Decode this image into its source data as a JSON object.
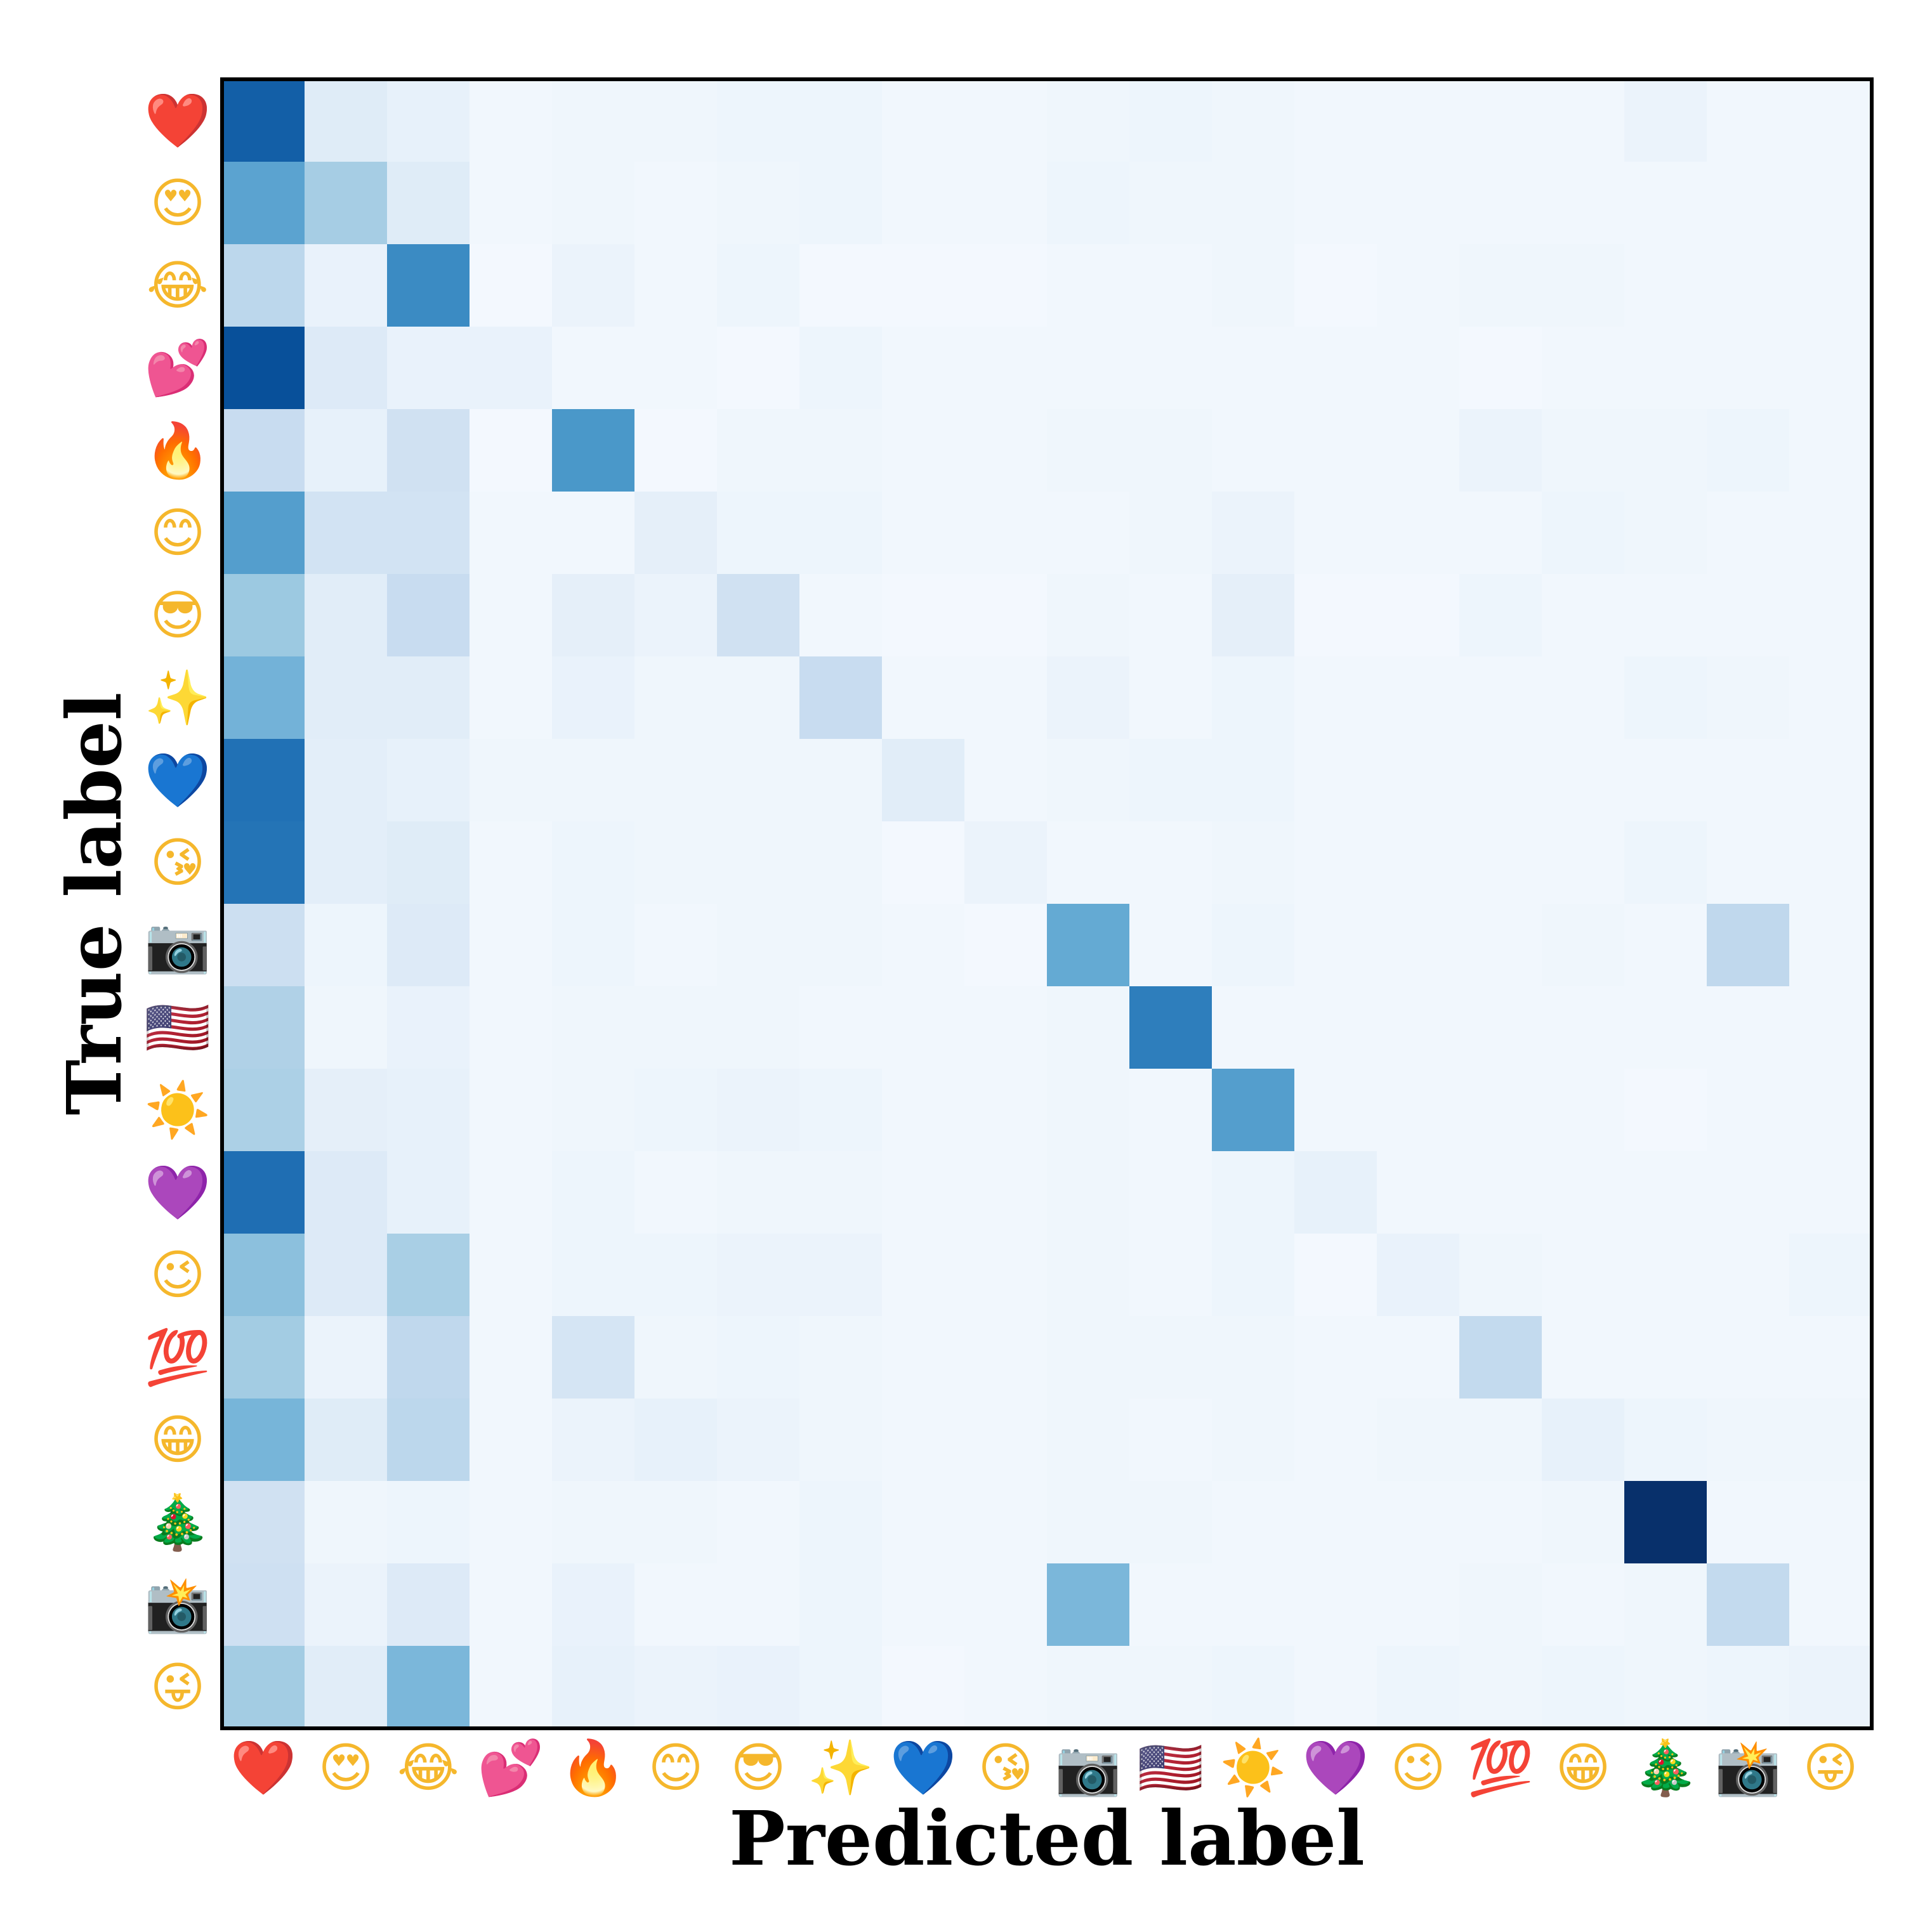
{
  "chart_data": {
    "type": "heatmap",
    "colormap": "Blues",
    "value_range": [
      0,
      1
    ],
    "xlabel": "Predicted label",
    "ylabel": "True label",
    "x_categories": [
      "❤️",
      "😍",
      "😂",
      "💕",
      "🔥",
      "😊",
      "😎",
      "✨",
      "💙",
      "😘",
      "📷",
      "🇺🇸",
      "☀️",
      "💜",
      "😉",
      "💯",
      "😁",
      "🎄",
      "📸",
      "😜"
    ],
    "y_categories": [
      "❤️",
      "😍",
      "😂",
      "💕",
      "🔥",
      "😊",
      "😎",
      "✨",
      "💙",
      "😘",
      "📷",
      "🇺🇸",
      "☀️",
      "💜",
      "😉",
      "💯",
      "😁",
      "🎄",
      "📸",
      "😜"
    ],
    "category_colors": [
      "#e0272a",
      "#f5b72c",
      "#f5b72c",
      "#e94aa6",
      "#f07a1c",
      "#f5b72c",
      "#f5b72c",
      "#f4cf3a",
      "#1d7cf2",
      "#f5b72c",
      "#555b60",
      "#2a4d9c",
      "#f5b72c",
      "#8d3ee6",
      "#f5b72c",
      "#d81e1e",
      "#f5b72c",
      "#2f8a3b",
      "#6f6f6f",
      "#f5b72c"
    ],
    "matrix": [
      [
        0.82,
        0.12,
        0.08,
        0.03,
        0.04,
        0.04,
        0.05,
        0.05,
        0.03,
        0.03,
        0.04,
        0.05,
        0.04,
        0.03,
        0.03,
        0.03,
        0.03,
        0.06,
        0.03,
        0.03
      ],
      [
        0.55,
        0.35,
        0.12,
        0.03,
        0.04,
        0.03,
        0.04,
        0.05,
        0.03,
        0.03,
        0.05,
        0.04,
        0.04,
        0.03,
        0.03,
        0.03,
        0.03,
        0.03,
        0.03,
        0.03
      ],
      [
        0.28,
        0.07,
        0.65,
        0.02,
        0.06,
        0.03,
        0.05,
        0.02,
        0.02,
        0.02,
        0.03,
        0.03,
        0.04,
        0.02,
        0.03,
        0.04,
        0.04,
        0.03,
        0.03,
        0.03
      ],
      [
        0.88,
        0.13,
        0.07,
        0.07,
        0.03,
        0.03,
        0.02,
        0.05,
        0.03,
        0.03,
        0.03,
        0.03,
        0.03,
        0.03,
        0.03,
        0.02,
        0.03,
        0.03,
        0.03,
        0.03
      ],
      [
        0.24,
        0.08,
        0.2,
        0.02,
        0.6,
        0.02,
        0.04,
        0.04,
        0.03,
        0.03,
        0.04,
        0.04,
        0.03,
        0.03,
        0.03,
        0.06,
        0.04,
        0.04,
        0.05,
        0.03
      ],
      [
        0.57,
        0.19,
        0.19,
        0.03,
        0.03,
        0.09,
        0.05,
        0.05,
        0.03,
        0.03,
        0.03,
        0.04,
        0.06,
        0.03,
        0.03,
        0.03,
        0.05,
        0.04,
        0.03,
        0.03
      ],
      [
        0.38,
        0.11,
        0.24,
        0.03,
        0.09,
        0.06,
        0.2,
        0.03,
        0.02,
        0.02,
        0.04,
        0.03,
        0.09,
        0.02,
        0.02,
        0.05,
        0.03,
        0.03,
        0.03,
        0.03
      ],
      [
        0.48,
        0.11,
        0.11,
        0.03,
        0.07,
        0.04,
        0.04,
        0.24,
        0.03,
        0.03,
        0.06,
        0.03,
        0.05,
        0.03,
        0.03,
        0.03,
        0.03,
        0.05,
        0.04,
        0.03
      ],
      [
        0.75,
        0.1,
        0.08,
        0.04,
        0.04,
        0.04,
        0.04,
        0.04,
        0.11,
        0.03,
        0.04,
        0.05,
        0.05,
        0.03,
        0.03,
        0.03,
        0.03,
        0.03,
        0.03,
        0.03
      ],
      [
        0.74,
        0.1,
        0.12,
        0.03,
        0.05,
        0.04,
        0.04,
        0.04,
        0.02,
        0.06,
        0.03,
        0.03,
        0.04,
        0.03,
        0.03,
        0.03,
        0.03,
        0.05,
        0.03,
        0.03
      ],
      [
        0.22,
        0.05,
        0.13,
        0.03,
        0.05,
        0.03,
        0.04,
        0.04,
        0.03,
        0.02,
        0.52,
        0.03,
        0.05,
        0.03,
        0.03,
        0.03,
        0.04,
        0.03,
        0.27,
        0.03
      ],
      [
        0.32,
        0.04,
        0.07,
        0.03,
        0.04,
        0.04,
        0.04,
        0.03,
        0.03,
        0.03,
        0.04,
        0.7,
        0.03,
        0.03,
        0.03,
        0.03,
        0.03,
        0.03,
        0.03,
        0.03
      ],
      [
        0.33,
        0.09,
        0.08,
        0.03,
        0.04,
        0.05,
        0.06,
        0.05,
        0.03,
        0.03,
        0.04,
        0.03,
        0.57,
        0.03,
        0.03,
        0.03,
        0.03,
        0.02,
        0.03,
        0.03
      ],
      [
        0.76,
        0.13,
        0.08,
        0.03,
        0.05,
        0.03,
        0.04,
        0.04,
        0.03,
        0.03,
        0.04,
        0.03,
        0.05,
        0.08,
        0.03,
        0.03,
        0.03,
        0.03,
        0.03,
        0.03
      ],
      [
        0.42,
        0.13,
        0.34,
        0.03,
        0.05,
        0.05,
        0.06,
        0.06,
        0.03,
        0.03,
        0.04,
        0.03,
        0.05,
        0.02,
        0.07,
        0.04,
        0.03,
        0.03,
        0.03,
        0.05
      ],
      [
        0.36,
        0.06,
        0.27,
        0.03,
        0.17,
        0.04,
        0.05,
        0.04,
        0.03,
        0.03,
        0.04,
        0.04,
        0.04,
        0.03,
        0.03,
        0.26,
        0.03,
        0.03,
        0.03,
        0.03
      ],
      [
        0.47,
        0.12,
        0.28,
        0.03,
        0.06,
        0.08,
        0.06,
        0.04,
        0.03,
        0.03,
        0.04,
        0.03,
        0.04,
        0.03,
        0.04,
        0.04,
        0.08,
        0.05,
        0.04,
        0.04
      ],
      [
        0.2,
        0.04,
        0.05,
        0.03,
        0.04,
        0.04,
        0.03,
        0.05,
        0.03,
        0.03,
        0.04,
        0.04,
        0.03,
        0.03,
        0.03,
        0.03,
        0.04,
        1.0,
        0.03,
        0.03
      ],
      [
        0.21,
        0.06,
        0.13,
        0.03,
        0.07,
        0.03,
        0.03,
        0.05,
        0.03,
        0.03,
        0.46,
        0.03,
        0.03,
        0.03,
        0.03,
        0.04,
        0.03,
        0.04,
        0.26,
        0.03
      ],
      [
        0.36,
        0.11,
        0.46,
        0.03,
        0.08,
        0.06,
        0.07,
        0.05,
        0.02,
        0.03,
        0.04,
        0.04,
        0.05,
        0.03,
        0.05,
        0.04,
        0.05,
        0.04,
        0.05,
        0.06
      ]
    ]
  }
}
